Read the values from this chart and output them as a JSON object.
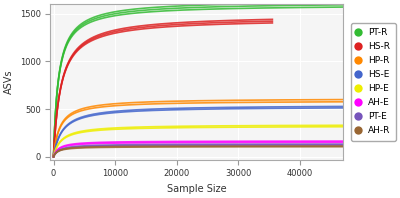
{
  "title": "",
  "xlabel": "Sample Size",
  "ylabel": "ASVs",
  "xlim": [
    -500,
    47000
  ],
  "ylim": [
    -30,
    1600
  ],
  "xticks": [
    0,
    10000,
    20000,
    30000,
    40000
  ],
  "yticks": [
    0,
    500,
    1000,
    1500
  ],
  "plot_bg": "#f5f5f5",
  "fig_bg": "#ffffff",
  "grid_color": "#ffffff",
  "series": [
    {
      "label": "PT-R",
      "color": "#33bb33",
      "asymptote": 1620,
      "half_sat": 800,
      "x_max": 47000,
      "n_lines": 3,
      "spread": 30
    },
    {
      "label": "HS-R",
      "color": "#dd2222",
      "asymptote": 1470,
      "half_sat": 1200,
      "x_max": 35500,
      "n_lines": 3,
      "spread": 25
    },
    {
      "label": "HP-R",
      "color": "#ff8800",
      "asymptote": 600,
      "half_sat": 1000,
      "x_max": 47000,
      "n_lines": 2,
      "spread": 15
    },
    {
      "label": "HS-E",
      "color": "#4466cc",
      "asymptote": 535,
      "half_sat": 1400,
      "x_max": 47000,
      "n_lines": 2,
      "spread": 10
    },
    {
      "label": "HP-E",
      "color": "#eeee00",
      "asymptote": 330,
      "half_sat": 1200,
      "x_max": 47000,
      "n_lines": 2,
      "spread": 10
    },
    {
      "label": "AH-E",
      "color": "#ff00ff",
      "asymptote": 160,
      "half_sat": 800,
      "x_max": 47000,
      "n_lines": 2,
      "spread": 8
    },
    {
      "label": "PT-E",
      "color": "#7755bb",
      "asymptote": 130,
      "half_sat": 900,
      "x_max": 47000,
      "n_lines": 2,
      "spread": 6
    },
    {
      "label": "AH-R",
      "color": "#996633",
      "asymptote": 110,
      "half_sat": 700,
      "x_max": 47000,
      "n_lines": 2,
      "spread": 5
    }
  ]
}
